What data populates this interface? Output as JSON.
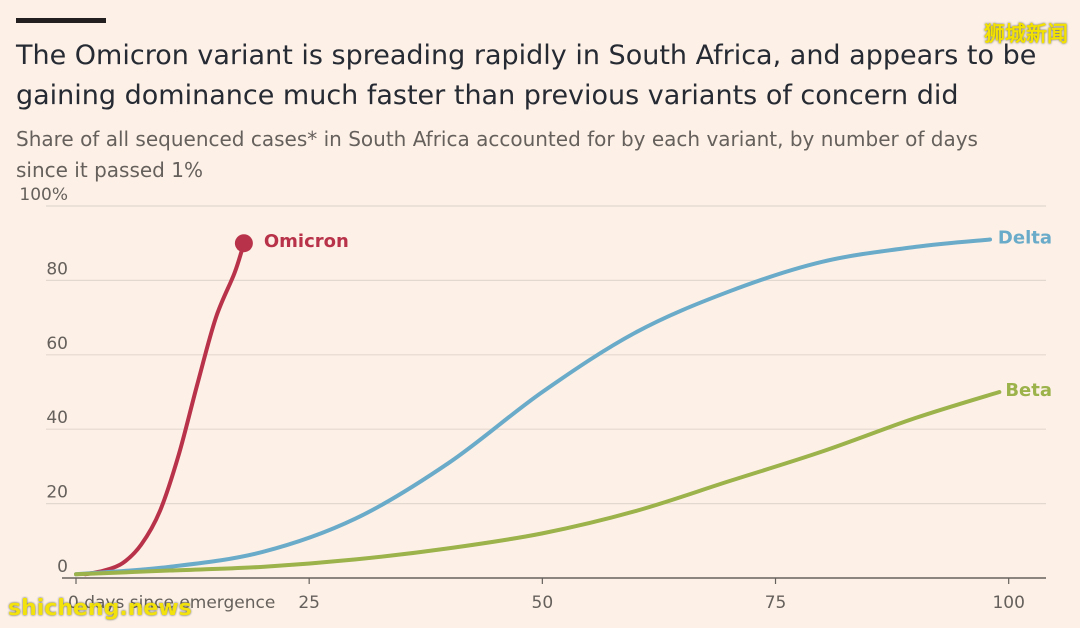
{
  "header": {
    "title": "The Omicron variant is spreading rapidly in South Africa, and appears to be gaining dominance much faster than previous variants of concern did",
    "subtitle": "Share of all sequenced cases* in South Africa accounted for by each variant, by number of days since it passed 1%"
  },
  "branding": {
    "corner_logo": "狮城新闻",
    "watermark": "shicheng.news"
  },
  "chart_data": {
    "type": "line",
    "title": "The Omicron variant is spreading rapidly in South Africa, and appears to be gaining dominance much faster than previous variants of concern did",
    "subtitle": "Share of all sequenced cases* in South Africa accounted for by each variant, by number of days since it passed 1%",
    "xlabel": "",
    "ylabel": "",
    "x_ticks": [
      0,
      25,
      50,
      75,
      100
    ],
    "x_tick_labels": [
      "0 days since emergence",
      "25",
      "50",
      "75",
      "100"
    ],
    "y_ticks": [
      0,
      20,
      40,
      60,
      80,
      100
    ],
    "y_tick_labels": [
      "0",
      "20",
      "40",
      "60",
      "80",
      "100%"
    ],
    "xlim": [
      0,
      104
    ],
    "ylim": [
      0,
      100
    ],
    "grid": "horizontal",
    "series": [
      {
        "name": "Omicron",
        "color": "#b8334a",
        "end_marker": true,
        "points": [
          [
            1,
            1
          ],
          [
            3,
            2
          ],
          [
            5,
            4
          ],
          [
            7,
            9
          ],
          [
            9,
            18
          ],
          [
            11,
            33
          ],
          [
            13,
            52
          ],
          [
            15,
            70
          ],
          [
            17,
            82
          ],
          [
            18,
            90
          ]
        ]
      },
      {
        "name": "Delta",
        "color": "#6aabc9",
        "end_marker": false,
        "points": [
          [
            0,
            1
          ],
          [
            10,
            3
          ],
          [
            20,
            7
          ],
          [
            30,
            16
          ],
          [
            40,
            31
          ],
          [
            50,
            50
          ],
          [
            60,
            66
          ],
          [
            70,
            77
          ],
          [
            80,
            85
          ],
          [
            90,
            89
          ],
          [
            98,
            91
          ]
        ]
      },
      {
        "name": "Beta",
        "color": "#9cb24a",
        "end_marker": false,
        "points": [
          [
            0,
            1
          ],
          [
            10,
            2
          ],
          [
            20,
            3
          ],
          [
            30,
            5
          ],
          [
            40,
            8
          ],
          [
            50,
            12
          ],
          [
            60,
            18
          ],
          [
            70,
            26
          ],
          [
            80,
            34
          ],
          [
            90,
            43
          ],
          [
            99,
            50
          ]
        ]
      }
    ]
  }
}
